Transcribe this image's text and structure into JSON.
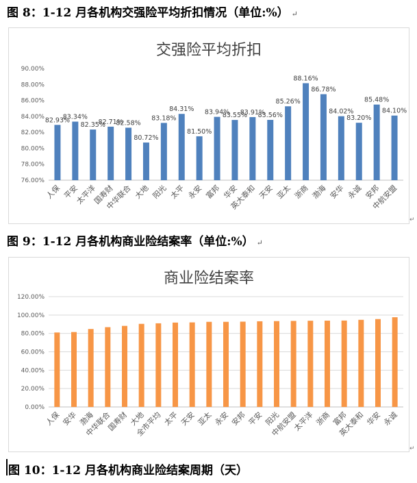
{
  "captions": {
    "fig8": "图 8：1-12 月各机构交强险平均折扣情况（单位:%）",
    "fig9": "图 9：1-12 月各机构商业险结案率（单位:%）",
    "fig10": "图 10：1-12 月各机构商业险结案周期（天）",
    "return_mark": "↵"
  },
  "chart_data": [
    {
      "type": "bar",
      "title": "交强险平均折扣",
      "categories": [
        "人保",
        "平安",
        "太平洋",
        "国寿财",
        "中华联合",
        "大地",
        "阳光",
        "太平",
        "永安",
        "富邦",
        "华安",
        "英大泰和",
        "天安",
        "亚太",
        "浙商",
        "渤海",
        "安华",
        "永诚",
        "安邦",
        "中航安盟"
      ],
      "values": [
        82.93,
        83.34,
        82.35,
        82.71,
        82.58,
        80.72,
        83.18,
        84.31,
        81.5,
        83.94,
        83.55,
        83.91,
        83.56,
        85.26,
        88.16,
        86.78,
        84.02,
        83.2,
        85.48,
        84.1
      ],
      "data_labels": [
        "82.93%",
        "83.34%",
        "82.35%",
        "82.71%",
        "82.58%",
        "80.72%",
        "83.18%",
        "84.31%",
        "81.50%",
        "83.94%",
        "83.55%",
        "83.91%",
        "83.56%",
        "85.26%",
        "88.16%",
        "86.78%",
        "84.02%",
        "83.20%",
        "85.48%",
        "84.10%"
      ],
      "yticks": [
        "76.00%",
        "78.00%",
        "80.00%",
        "82.00%",
        "84.00%",
        "86.00%",
        "88.00%",
        "90.00%"
      ],
      "ylim": [
        76,
        90
      ],
      "color": "#4f81bd",
      "grid": false,
      "legend": "none"
    },
    {
      "type": "bar",
      "title": "商业险结案率",
      "categories": [
        "人保",
        "安华",
        "渤海",
        "中华联合",
        "国寿财",
        "大地",
        "全市平均",
        "太平",
        "天安",
        "亚太",
        "永安",
        "安邦",
        "平安",
        "阳光",
        "中航安盟",
        "太平洋",
        "浙商",
        "富邦",
        "英大泰和",
        "华安",
        "永诚"
      ],
      "values": [
        81.0,
        81.5,
        84.8,
        86.8,
        88.2,
        90.4,
        91.0,
        91.8,
        92.0,
        92.6,
        92.6,
        92.8,
        93.2,
        93.4,
        93.6,
        93.8,
        93.9,
        94.0,
        94.8,
        95.6,
        97.6
      ],
      "yticks": [
        "0.00%",
        "20.00%",
        "40.00%",
        "60.00%",
        "80.00%",
        "100.00%",
        "120.00%"
      ],
      "ylim": [
        0,
        120
      ],
      "color": "#f79646",
      "grid": true,
      "legend": "none"
    }
  ]
}
